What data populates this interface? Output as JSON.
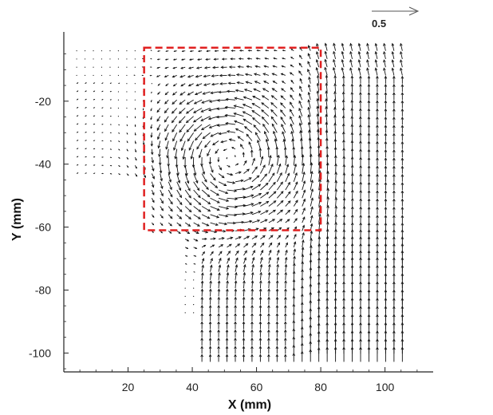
{
  "chart_data": {
    "type": "vector_field",
    "title": "",
    "xlabel": "X (mm)",
    "ylabel": "Y (mm)",
    "xlim": [
      0,
      115
    ],
    "ylim": [
      -106,
      2
    ],
    "x_ticks": [
      20,
      40,
      60,
      80,
      100
    ],
    "y_ticks": [
      -20,
      -40,
      -60,
      -80,
      -100
    ],
    "reference_vector": {
      "label": "0.5",
      "magnitude": 0.5
    },
    "vortex_center": {
      "x": 52,
      "y": -38
    },
    "region_of_interest": {
      "x_range": [
        25,
        80
      ],
      "y_range": [
        -61,
        -3
      ],
      "color": "#e02020",
      "style": "dashed"
    },
    "grid": false,
    "arrow_color": "#111111"
  }
}
